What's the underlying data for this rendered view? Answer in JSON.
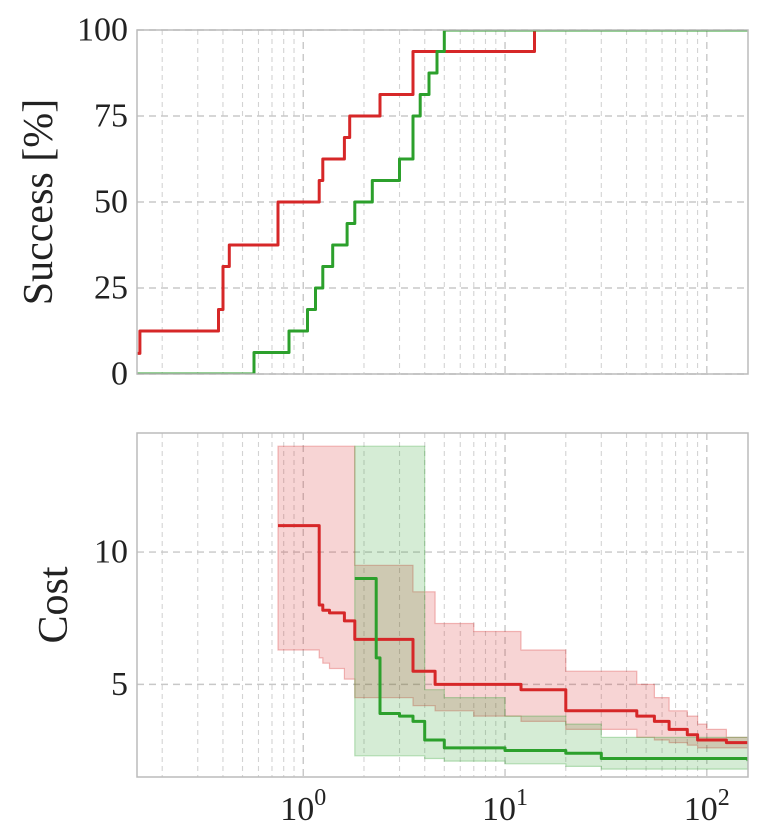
{
  "chart_data": [
    {
      "type": "line",
      "xscale": "log",
      "xlim": [
        0.15,
        160
      ],
      "ylim": [
        0,
        100
      ],
      "ylabel": "Success [%]",
      "yticks": [
        0,
        25,
        50,
        75,
        100
      ],
      "ytick_labels": [
        "0",
        "25",
        "50",
        "75",
        "100"
      ],
      "grid": true,
      "series": [
        {
          "color": "#d62728",
          "step": true,
          "x": [
            0.15,
            0.155,
            0.38,
            0.4,
            0.43,
            0.52,
            0.75,
            1.2,
            1.25,
            1.35,
            1.6,
            1.7,
            1.8,
            2.4,
            2.8,
            3.5,
            14,
            160
          ],
          "y": [
            6,
            12.5,
            18.75,
            31.25,
            37.5,
            37.5,
            50,
            56.25,
            62.5,
            62.5,
            68.75,
            75,
            75,
            81.25,
            81.25,
            93.75,
            100,
            100
          ]
        },
        {
          "color": "#2ca02c",
          "step": true,
          "x": [
            0.15,
            0.55,
            0.57,
            0.85,
            1.05,
            1.15,
            1.25,
            1.4,
            1.65,
            1.8,
            2.2,
            2.8,
            3.0,
            3.5,
            3.8,
            4.2,
            4.6,
            5.0,
            160
          ],
          "y": [
            0,
            0,
            6.25,
            12.5,
            18.75,
            25,
            31.25,
            37.5,
            43.75,
            50,
            56.25,
            56.25,
            62.5,
            75,
            81.25,
            87.5,
            93.75,
            100,
            100
          ]
        }
      ]
    },
    {
      "type": "line",
      "xscale": "log",
      "xlim": [
        0.15,
        160
      ],
      "ylim": [
        1.5,
        14.5
      ],
      "ylabel": "Cost",
      "yticks": [
        5,
        10
      ],
      "ytick_labels": [
        "5",
        "10"
      ],
      "xticks": [
        1,
        10,
        100
      ],
      "xtick_labels": [
        {
          "base": "10",
          "exp": "0"
        },
        {
          "base": "10",
          "exp": "1"
        },
        {
          "base": "10",
          "exp": "2"
        }
      ],
      "grid": true,
      "series": [
        {
          "color": "#d62728",
          "step": true,
          "x": [
            0.75,
            1.2,
            1.25,
            1.35,
            1.6,
            1.8,
            3.5,
            4.5,
            7,
            12,
            20,
            45,
            55,
            65,
            80,
            90,
            100,
            125,
            160
          ],
          "y": [
            11,
            8,
            7.8,
            7.7,
            7.4,
            6.7,
            5.5,
            5.0,
            5.0,
            4.8,
            4.0,
            3.8,
            3.6,
            3.3,
            3.1,
            2.9,
            2.9,
            2.8,
            2.8
          ],
          "band_upper": [
            14,
            14,
            14,
            14,
            14,
            9.5,
            8.5,
            7.3,
            7.0,
            6.3,
            5.5,
            5.0,
            4.5,
            4.0,
            3.8,
            3.5,
            3.3,
            3.0,
            3.0
          ],
          "band_lower": [
            6.3,
            6.0,
            5.8,
            5.6,
            5.2,
            4.5,
            4.2,
            4.0,
            3.8,
            3.6,
            3.3,
            3.0,
            2.9,
            2.8,
            2.7,
            2.6,
            2.6,
            2.6,
            2.6
          ]
        },
        {
          "color": "#2ca02c",
          "step": true,
          "x": [
            1.8,
            2.3,
            2.4,
            3.0,
            3.5,
            4.0,
            5.0,
            10,
            20,
            30,
            160
          ],
          "y": [
            9,
            6.0,
            3.9,
            3.8,
            3.6,
            2.9,
            2.6,
            2.5,
            2.4,
            2.2,
            2.1
          ],
          "band_upper": [
            14,
            14,
            14,
            14,
            14,
            4.8,
            4.5,
            3.8,
            3.5,
            3.0,
            2.6
          ],
          "band_lower": [
            2.3,
            2.3,
            2.3,
            2.3,
            2.3,
            2.2,
            2.1,
            2.0,
            1.9,
            1.8,
            1.8
          ]
        }
      ]
    }
  ]
}
